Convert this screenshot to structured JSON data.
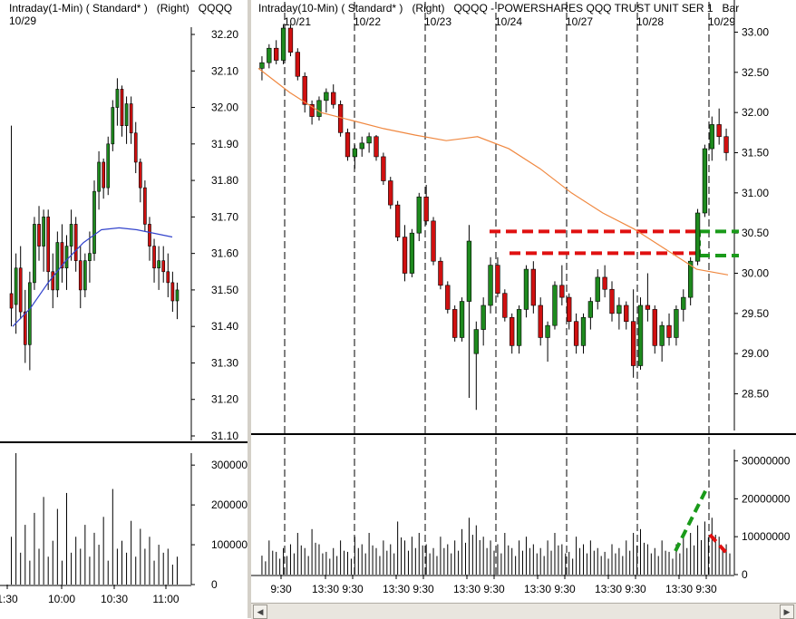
{
  "left": {
    "header": {
      "interval": "Intraday(1-Min)",
      "style": "( Standard* )",
      "axis": "(Right)",
      "symbol": "QQQQ",
      "date": "10/29"
    },
    "y_ticks": [
      "32.20",
      "32.10",
      "32.00",
      "31.90",
      "31.80",
      "31.70",
      "31.60",
      "31.50",
      "31.40",
      "31.30",
      "31.20",
      "31.10"
    ],
    "vol_ticks": [
      "3000000",
      "2000000",
      "1000000",
      "0"
    ],
    "x_ticks": [
      "1:30",
      "10:00",
      "10:30",
      "11:00"
    ]
  },
  "right": {
    "header": {
      "interval": "Intraday(10-Min)",
      "style": "( Standard* )",
      "axis": "(Right)",
      "title": "QQQQ - POWERSHARES QQQ TRUST UNIT SER 1",
      "extra": "Bar"
    },
    "date_labels": [
      "10/21",
      "10/22",
      "10/23",
      "10/24",
      "10/27",
      "10/28",
      "10/29"
    ],
    "y_ticks": [
      "33.00",
      "32.50",
      "32.00",
      "31.50",
      "31.00",
      "30.50",
      "30.00",
      "29.50",
      "29.00",
      "28.50"
    ],
    "vol_ticks": [
      "30000000",
      "20000000",
      "10000000",
      "0"
    ],
    "x_ticks": [
      "9:30",
      "13:30",
      "9:30",
      "13:30",
      "9:30",
      "13:30",
      "9:30",
      "13:30",
      "9:30",
      "13:30",
      "9:30",
      "13:30",
      "9:30"
    ]
  },
  "colors": {
    "up": "#1e8a1e",
    "down": "#d01010",
    "ma_left": "#3344cc",
    "ma_right": "#f08840",
    "resistance": "#e01010",
    "support_break": "#1a9a1a"
  },
  "chart_data": [
    {
      "type": "candlestick",
      "name": "left-1min",
      "ylim": [
        31.1,
        32.2
      ],
      "x_range": [
        0,
        100
      ],
      "ohlc": [
        [
          31.49,
          31.95,
          31.4,
          31.45
        ],
        [
          31.46,
          31.6,
          31.38,
          31.56
        ],
        [
          31.56,
          31.62,
          31.42,
          31.44
        ],
        [
          31.44,
          31.5,
          31.3,
          31.35
        ],
        [
          31.35,
          31.55,
          31.28,
          31.52
        ],
        [
          31.52,
          31.7,
          31.5,
          31.68
        ],
        [
          31.68,
          31.73,
          31.58,
          31.62
        ],
        [
          31.62,
          31.72,
          31.55,
          31.7
        ],
        [
          31.7,
          31.72,
          31.5,
          31.55
        ],
        [
          31.55,
          31.6,
          31.45,
          31.5
        ],
        [
          31.5,
          31.66,
          31.48,
          31.63
        ],
        [
          31.63,
          31.68,
          31.52,
          31.56
        ],
        [
          31.56,
          31.65,
          31.5,
          31.62
        ],
        [
          31.62,
          31.72,
          31.58,
          31.68
        ],
        [
          31.68,
          31.7,
          31.55,
          31.58
        ],
        [
          31.58,
          31.62,
          31.45,
          31.5
        ],
        [
          31.5,
          31.6,
          31.48,
          31.58
        ],
        [
          31.58,
          31.66,
          31.52,
          31.6
        ],
        [
          31.6,
          31.8,
          31.58,
          31.77
        ],
        [
          31.77,
          31.88,
          31.72,
          31.85
        ],
        [
          31.85,
          31.86,
          31.75,
          31.78
        ],
        [
          31.78,
          31.92,
          31.76,
          31.9
        ],
        [
          31.9,
          32.02,
          31.88,
          32.0
        ],
        [
          32.0,
          32.08,
          31.95,
          32.05
        ],
        [
          32.05,
          32.06,
          31.92,
          31.95
        ],
        [
          31.95,
          32.03,
          31.9,
          32.01
        ],
        [
          32.01,
          32.03,
          31.9,
          31.93
        ],
        [
          31.93,
          31.96,
          31.82,
          31.85
        ],
        [
          31.85,
          31.86,
          31.74,
          31.78
        ],
        [
          31.78,
          31.8,
          31.66,
          31.68
        ],
        [
          31.68,
          31.7,
          31.58,
          31.62
        ],
        [
          31.62,
          31.64,
          31.52,
          31.56
        ],
        [
          31.56,
          31.62,
          31.5,
          31.58
        ],
        [
          31.58,
          31.62,
          31.52,
          31.55
        ],
        [
          31.55,
          31.6,
          31.48,
          31.52
        ],
        [
          31.52,
          31.55,
          31.44,
          31.47
        ],
        [
          31.47,
          31.52,
          31.42,
          31.5
        ]
      ],
      "ma": [
        31.4,
        31.45,
        31.52,
        31.58,
        31.63,
        31.665,
        31.67,
        31.665,
        31.655,
        31.645
      ],
      "volume": [
        1200000,
        3300000,
        800000,
        1500000,
        600000,
        1800000,
        900000,
        2200000,
        700000,
        1100000,
        1900000,
        600000,
        2300000,
        800000,
        1200000,
        900000,
        1500000,
        700000,
        1300000,
        1000000,
        1700000,
        600000,
        2400000,
        900000,
        1100000,
        800000,
        1600000,
        700000,
        1400000,
        900000,
        1200000,
        600000,
        1000000,
        800000,
        900000,
        500000,
        700000
      ]
    },
    {
      "type": "candlestick",
      "name": "right-10min",
      "ylim": [
        28.1,
        33.4
      ],
      "x_range": [
        0,
        100
      ],
      "ohlc": [
        [
          32.55,
          32.7,
          32.4,
          32.62
        ],
        [
          32.62,
          32.85,
          32.55,
          32.8
        ],
        [
          32.8,
          32.9,
          32.6,
          32.65
        ],
        [
          32.65,
          33.1,
          32.6,
          33.05
        ],
        [
          33.05,
          33.1,
          32.7,
          32.75
        ],
        [
          32.75,
          32.8,
          32.4,
          32.45
        ],
        [
          32.45,
          32.5,
          32.0,
          32.1
        ],
        [
          32.1,
          32.15,
          31.85,
          31.95
        ],
        [
          31.95,
          32.2,
          31.9,
          32.15
        ],
        [
          32.15,
          32.3,
          32.0,
          32.25
        ],
        [
          32.25,
          32.35,
          32.05,
          32.1
        ],
        [
          32.1,
          32.15,
          31.7,
          31.75
        ],
        [
          31.75,
          31.8,
          31.4,
          31.45
        ],
        [
          31.45,
          31.6,
          31.3,
          31.55
        ],
        [
          31.55,
          31.7,
          31.45,
          31.62
        ],
        [
          31.62,
          31.75,
          31.5,
          31.7
        ],
        [
          31.7,
          31.72,
          31.4,
          31.45
        ],
        [
          31.45,
          31.5,
          31.1,
          31.15
        ],
        [
          31.15,
          31.2,
          30.8,
          30.85
        ],
        [
          30.85,
          30.9,
          30.4,
          30.45
        ],
        [
          30.45,
          30.6,
          29.9,
          30.0
        ],
        [
          30.0,
          30.55,
          29.95,
          30.5
        ],
        [
          30.5,
          31.0,
          30.4,
          30.95
        ],
        [
          30.95,
          31.1,
          30.6,
          30.65
        ],
        [
          30.65,
          30.7,
          30.1,
          30.15
        ],
        [
          30.15,
          30.2,
          29.8,
          29.85
        ],
        [
          29.85,
          29.9,
          29.5,
          29.55
        ],
        [
          29.55,
          29.6,
          29.15,
          29.2
        ],
        [
          29.2,
          29.7,
          29.15,
          29.65
        ],
        [
          29.65,
          30.6,
          28.45,
          30.4
        ],
        [
          29.0,
          29.4,
          28.3,
          29.3
        ],
        [
          29.3,
          29.7,
          29.1,
          29.6
        ],
        [
          29.6,
          30.2,
          29.5,
          30.1
        ],
        [
          30.1,
          30.2,
          29.7,
          29.75
        ],
        [
          29.75,
          29.8,
          29.4,
          29.45
        ],
        [
          29.45,
          29.5,
          29.0,
          29.1
        ],
        [
          29.1,
          29.6,
          29.0,
          29.55
        ],
        [
          29.55,
          30.1,
          29.45,
          30.05
        ],
        [
          30.05,
          30.15,
          29.5,
          29.6
        ],
        [
          29.6,
          29.7,
          29.1,
          29.2
        ],
        [
          29.2,
          29.4,
          28.9,
          29.35
        ],
        [
          29.35,
          29.9,
          29.3,
          29.85
        ],
        [
          29.85,
          30.1,
          29.6,
          29.7
        ],
        [
          29.7,
          29.75,
          29.3,
          29.4
        ],
        [
          29.4,
          29.5,
          29.0,
          29.1
        ],
        [
          29.1,
          29.5,
          29.0,
          29.45
        ],
        [
          29.45,
          29.7,
          29.3,
          29.65
        ],
        [
          29.65,
          30.05,
          29.55,
          29.95
        ],
        [
          29.95,
          30.1,
          29.7,
          29.8
        ],
        [
          29.8,
          29.9,
          29.4,
          29.5
        ],
        [
          29.5,
          29.7,
          29.3,
          29.6
        ],
        [
          29.6,
          29.65,
          29.3,
          29.4
        ],
        [
          29.4,
          29.8,
          28.7,
          28.85
        ],
        [
          28.85,
          29.7,
          28.8,
          29.6
        ],
        [
          29.6,
          30.0,
          29.4,
          29.55
        ],
        [
          29.55,
          29.6,
          29.0,
          29.1
        ],
        [
          29.1,
          29.4,
          28.9,
          29.35
        ],
        [
          29.35,
          29.5,
          29.1,
          29.2
        ],
        [
          29.2,
          29.6,
          29.1,
          29.55
        ],
        [
          29.55,
          29.8,
          29.4,
          29.7
        ],
        [
          29.7,
          30.2,
          29.6,
          30.15
        ],
        [
          30.15,
          30.8,
          30.1,
          30.75
        ],
        [
          30.75,
          31.6,
          30.7,
          31.55
        ],
        [
          31.55,
          31.95,
          31.4,
          31.85
        ],
        [
          31.85,
          32.05,
          31.6,
          31.7
        ],
        [
          31.7,
          31.8,
          31.4,
          31.5
        ]
      ],
      "ma": [
        32.55,
        32.25,
        32.0,
        31.9,
        31.8,
        31.72,
        31.65,
        31.7,
        31.55,
        31.3,
        31.0,
        30.75,
        30.55,
        30.3,
        30.05,
        29.98
      ],
      "volume": [
        0.25,
        0.45,
        0.3,
        0.35,
        0.4,
        0.55,
        0.35,
        0.6,
        0.4,
        0.3,
        0.35,
        0.45,
        0.3,
        0.5,
        0.4,
        0.55,
        0.35,
        0.45,
        0.4,
        0.7,
        0.45,
        0.5,
        0.55,
        0.4,
        0.35,
        0.5,
        0.4,
        0.45,
        0.6,
        0.75,
        0.65,
        0.5,
        0.45,
        0.4,
        0.55,
        0.35,
        0.45,
        0.5,
        0.4,
        0.35,
        0.45,
        0.55,
        0.4,
        0.3,
        0.5,
        0.4,
        0.45,
        0.35,
        0.3,
        0.4,
        0.35,
        0.45,
        0.55,
        0.6,
        0.4,
        0.35,
        0.45,
        0.3,
        0.4,
        0.5,
        0.55,
        0.65,
        0.7,
        0.75,
        0.5,
        0.4
      ],
      "annotations": {
        "resistance_upper": 30.52,
        "resistance_lower": 30.25,
        "break_upper": 30.52,
        "break_lower": 30.22
      }
    }
  ]
}
